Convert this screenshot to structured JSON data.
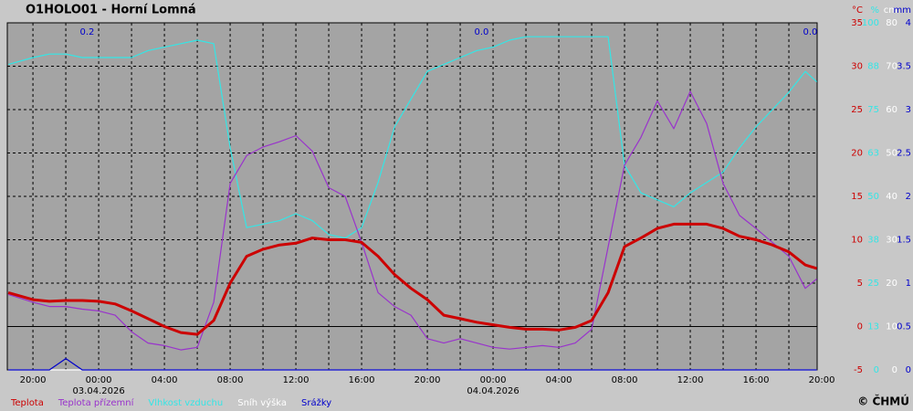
{
  "chart_data": {
    "type": "line",
    "title": "O1HOLO01 - Horní Lomná",
    "copyright": "© ČHMÚ",
    "x": [
      -5.5,
      -4,
      -3,
      -2,
      -1,
      0,
      1,
      2,
      3,
      4,
      5,
      6,
      7,
      8,
      9,
      10,
      11,
      12,
      13,
      14,
      15,
      16,
      17,
      18,
      19,
      20,
      21,
      22,
      23,
      24,
      25,
      26,
      27,
      28,
      29,
      30,
      31,
      32,
      33,
      34,
      35,
      36,
      37,
      38,
      39,
      40,
      41,
      42,
      43,
      43.7
    ],
    "xlim": [
      -5.56,
      43.72
    ],
    "xticks": [
      {
        "value": -4,
        "label": "20:00"
      },
      {
        "value": 0,
        "label": "00:00"
      },
      {
        "value": 4,
        "label": "04:00"
      },
      {
        "value": 8,
        "label": "08:00"
      },
      {
        "value": 12,
        "label": "12:00"
      },
      {
        "value": 16,
        "label": "16:00"
      },
      {
        "value": 20,
        "label": "20:00"
      },
      {
        "value": 24,
        "label": "00:00"
      },
      {
        "value": 28,
        "label": "04:00"
      },
      {
        "value": 32,
        "label": "08:00"
      },
      {
        "value": 36,
        "label": "12:00"
      },
      {
        "value": 40,
        "label": "16:00"
      },
      {
        "value": 44,
        "label": "20:00"
      }
    ],
    "date_labels": [
      {
        "value": 0,
        "label": "03.04.2026"
      },
      {
        "value": 24,
        "label": "04.04.2026"
      }
    ],
    "ylim": [
      -5,
      35
    ],
    "yticks": [
      -5,
      0,
      5,
      10,
      15,
      20,
      25,
      30,
      35
    ],
    "y_unit": "°C",
    "y_color": "#cc0000",
    "y2lim": [
      0,
      100
    ],
    "y2ticks": [
      0,
      {
        "value": 12.5,
        "label": "13"
      },
      25,
      {
        "value": 37.5,
        "label": "38"
      },
      50,
      {
        "value": 62.5,
        "label": "63"
      },
      75,
      {
        "value": 87.5,
        "label": "88"
      },
      100
    ],
    "y2_unit": "%",
    "y2_color": "#33e6e6",
    "y3lim": [
      0,
      80
    ],
    "y3ticks": [
      0,
      10,
      20,
      30,
      40,
      50,
      60,
      70,
      80
    ],
    "y3_unit": "cm",
    "y3_color": "#ffffff",
    "y4lim": [
      0,
      4
    ],
    "y4ticks": [
      0,
      0.5,
      1,
      1.5,
      2,
      2.5,
      3,
      3.5,
      4
    ],
    "y4_unit": "mm",
    "y4_color": "#0000cc",
    "grid": true,
    "annotations": [
      {
        "x": -0.7,
        "text": "0.2"
      },
      {
        "x": 23.3,
        "text": "0.0"
      },
      {
        "x": 43.3,
        "text": "0.0"
      }
    ],
    "series": [
      {
        "name": "Teplota",
        "color": "#cc0000",
        "axis": "y",
        "values": [
          3.9,
          3.1,
          2.9,
          3.0,
          3.0,
          2.9,
          2.6,
          1.8,
          0.9,
          0,
          -0.7,
          -0.9,
          0.7,
          5,
          8.1,
          8.9,
          9.4,
          9.6,
          10.2,
          10,
          10,
          9.7,
          8.1,
          6,
          4.4,
          3.1,
          1.3,
          0.9,
          0.5,
          0.2,
          -0.1,
          -0.3,
          -0.3,
          -0.4,
          -0.1,
          0.7,
          3.9,
          9.2,
          10.2,
          11.3,
          11.8,
          11.8,
          11.8,
          11.3,
          10.4,
          10,
          9.4,
          8.6,
          7.1,
          6.7
        ]
      },
      {
        "name": "Teplota přízemní",
        "color": "#9933cc",
        "axis": "y",
        "values": [
          3.7,
          2.8,
          2.3,
          2.3,
          2.0,
          1.8,
          1.3,
          -0.6,
          -1.9,
          -2.2,
          -2.7,
          -2.4,
          2.8,
          16.5,
          19.7,
          20.7,
          21.3,
          22.0,
          20.2,
          16.0,
          15.0,
          9.7,
          3.9,
          2.3,
          1.3,
          -1.4,
          -1.9,
          -1.4,
          -1.9,
          -2.4,
          -2.6,
          -2.4,
          -2.2,
          -2.4,
          -1.9,
          -0.3,
          9.2,
          18.6,
          21.8,
          26.0,
          22.8,
          27.1,
          23.4,
          16.5,
          12.8,
          11.3,
          9.7,
          8.1,
          4.4,
          5.5
        ]
      },
      {
        "name": "Vlhkost vzduchu",
        "color": "#33e6e6",
        "axis": "y2",
        "values": [
          88,
          90,
          91,
          91,
          90,
          90,
          90,
          90,
          92,
          93,
          94,
          95,
          94,
          64,
          41,
          42,
          43,
          45,
          43,
          39,
          38,
          41,
          54,
          70,
          78,
          86,
          88,
          90,
          92,
          93,
          95,
          96,
          96,
          96,
          96,
          96,
          96,
          59,
          51,
          49,
          47,
          51,
          54,
          57,
          64,
          70,
          75,
          80,
          86,
          83
        ]
      },
      {
        "name": "Sníh výška",
        "color": "#ffffff",
        "axis": "y3",
        "values": [
          0,
          0,
          0,
          0,
          0,
          0,
          0,
          0,
          0,
          0,
          0,
          0,
          0,
          0,
          0,
          0,
          0,
          0,
          0,
          0,
          0,
          0,
          0,
          0,
          0,
          0,
          0,
          0,
          0,
          0,
          0,
          0,
          0,
          0,
          0,
          0,
          0,
          0,
          0,
          0,
          0,
          0,
          0,
          0,
          0,
          0,
          0,
          0,
          0,
          0
        ]
      },
      {
        "name": "Srážky",
        "color": "#0000cc",
        "axis": "y4",
        "values": [
          0,
          0,
          0,
          0.13,
          0,
          0,
          0,
          0,
          0,
          0,
          0,
          0,
          0,
          0,
          0,
          0,
          0,
          0,
          0,
          0,
          0,
          0,
          0,
          0,
          0,
          0,
          0,
          0,
          0,
          0,
          0,
          0,
          0,
          0,
          0,
          0,
          0,
          0,
          0,
          0,
          0,
          0,
          0,
          0,
          0,
          0,
          0,
          0,
          0,
          0
        ]
      }
    ]
  }
}
